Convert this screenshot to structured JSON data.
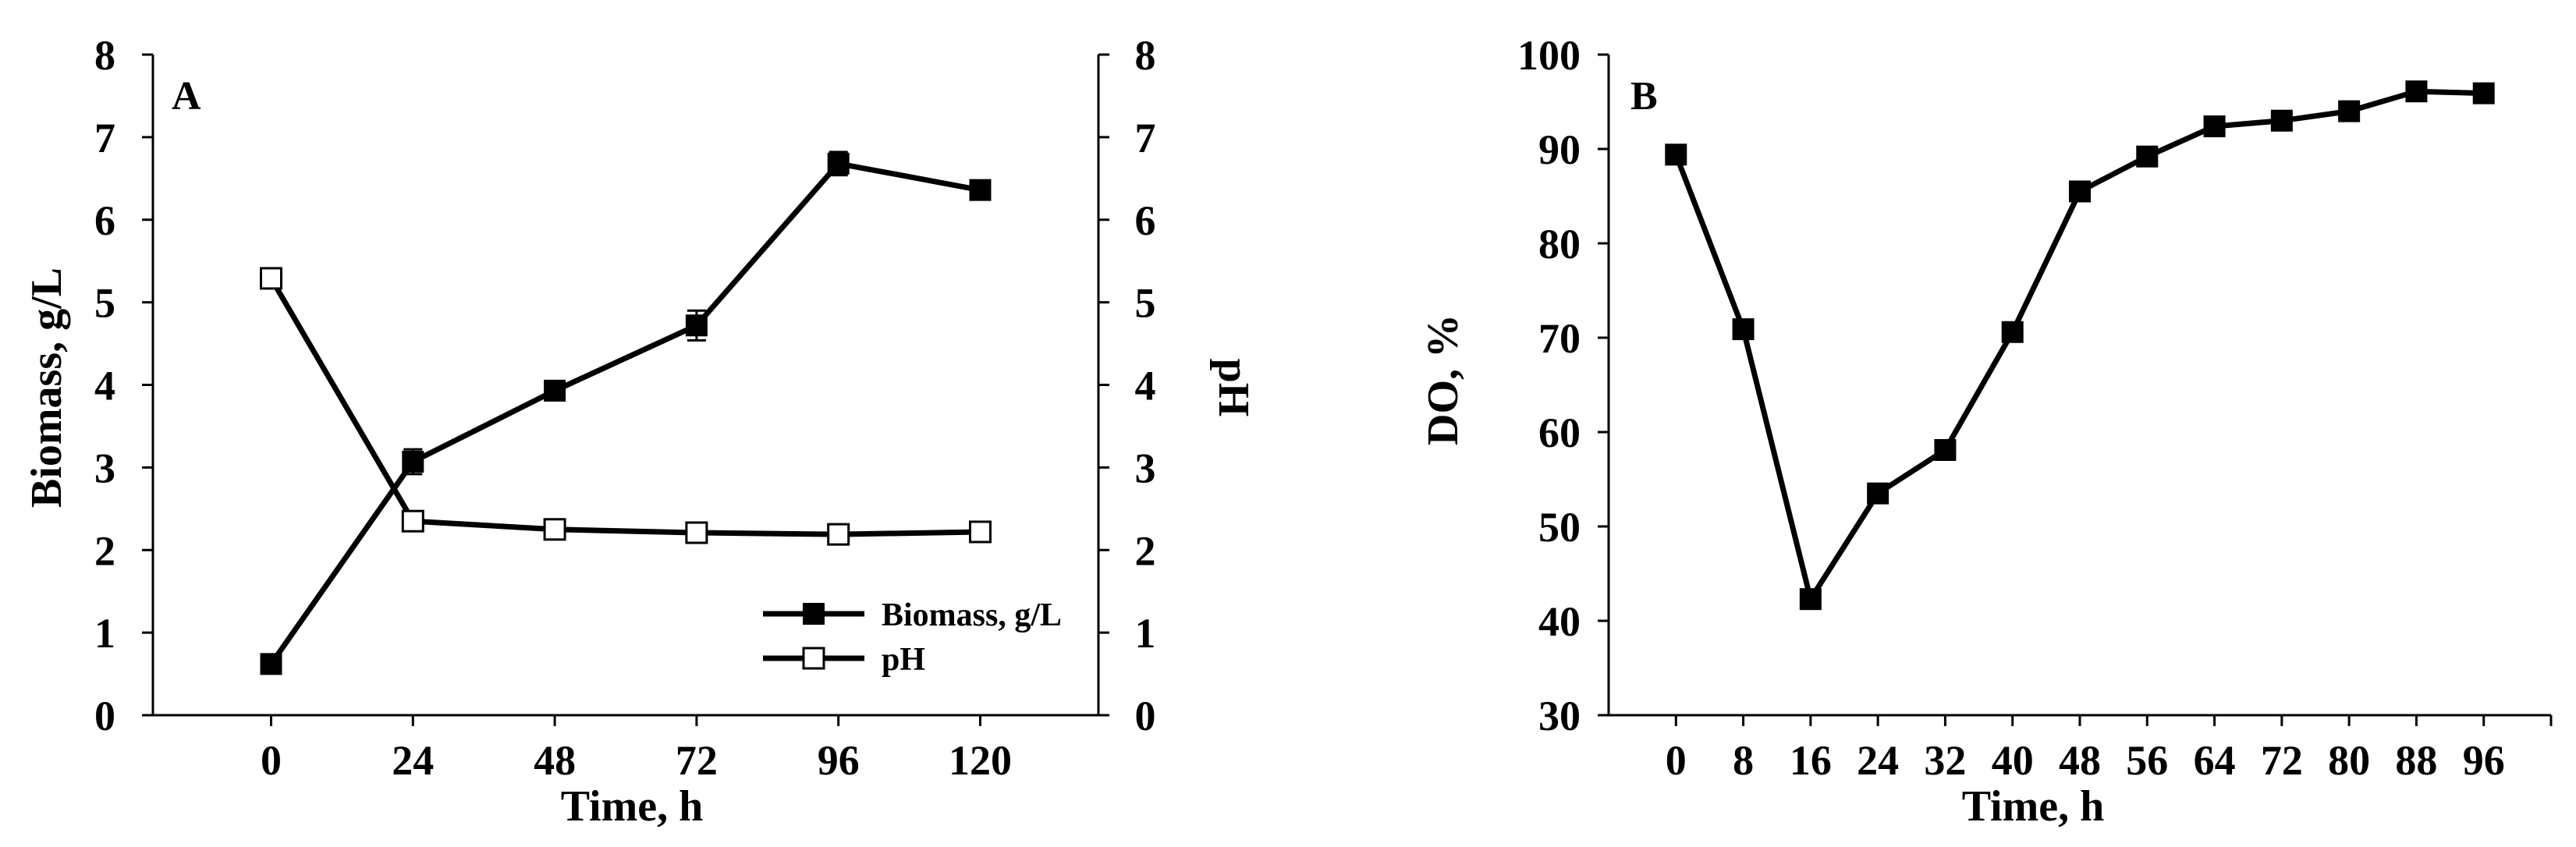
{
  "chart_data": [
    {
      "type": "line",
      "panel_label": "A",
      "xlabel": "Time, h",
      "ylabel_left": "Biomass, g/L",
      "ylabel_right": "pH",
      "x_ticks": [
        0,
        24,
        48,
        72,
        96,
        120
      ],
      "y_ticks_left": [
        0,
        1,
        2,
        3,
        4,
        5,
        6,
        7,
        8
      ],
      "y_ticks_right": [
        0,
        1,
        2,
        3,
        4,
        5,
        6,
        7,
        8
      ],
      "xlim": [
        -20,
        140
      ],
      "ylim_left": [
        0,
        8
      ],
      "ylim_right": [
        0,
        8
      ],
      "grid": false,
      "legend_position": "bottom-right",
      "x": [
        0,
        24,
        48,
        72,
        96,
        120
      ],
      "series": [
        {
          "name": "Biomass, g/L",
          "axis": "left",
          "marker": "filled-square",
          "values": [
            0.62,
            3.07,
            3.93,
            4.72,
            6.68,
            6.36
          ],
          "errors": [
            0.05,
            0.15,
            0.06,
            0.18,
            0.14,
            0.05
          ]
        },
        {
          "name": "pH",
          "axis": "right",
          "marker": "open-square",
          "values": [
            5.29,
            2.35,
            2.25,
            2.21,
            2.19,
            2.22
          ],
          "errors": [
            0,
            0,
            0,
            0,
            0,
            0
          ]
        }
      ]
    },
    {
      "type": "line",
      "panel_label": "B",
      "xlabel": "Time, h",
      "ylabel": "DO, %",
      "x_ticks": [
        0,
        8,
        16,
        24,
        32,
        40,
        48,
        56,
        64,
        72,
        80,
        88,
        96
      ],
      "y_ticks": [
        30,
        40,
        50,
        60,
        70,
        80,
        90,
        100
      ],
      "xlim": [
        -8,
        104
      ],
      "ylim": [
        30,
        100
      ],
      "grid": false,
      "x": [
        0,
        8,
        16,
        24,
        32,
        40,
        48,
        56,
        64,
        72,
        80,
        88,
        96
      ],
      "series": [
        {
          "marker": "filled-square",
          "values": [
            89.4,
            70.9,
            42.3,
            53.5,
            58.1,
            70.6,
            85.5,
            89.2,
            92.4,
            93.0,
            94.0,
            96.1,
            95.9
          ]
        }
      ]
    }
  ]
}
